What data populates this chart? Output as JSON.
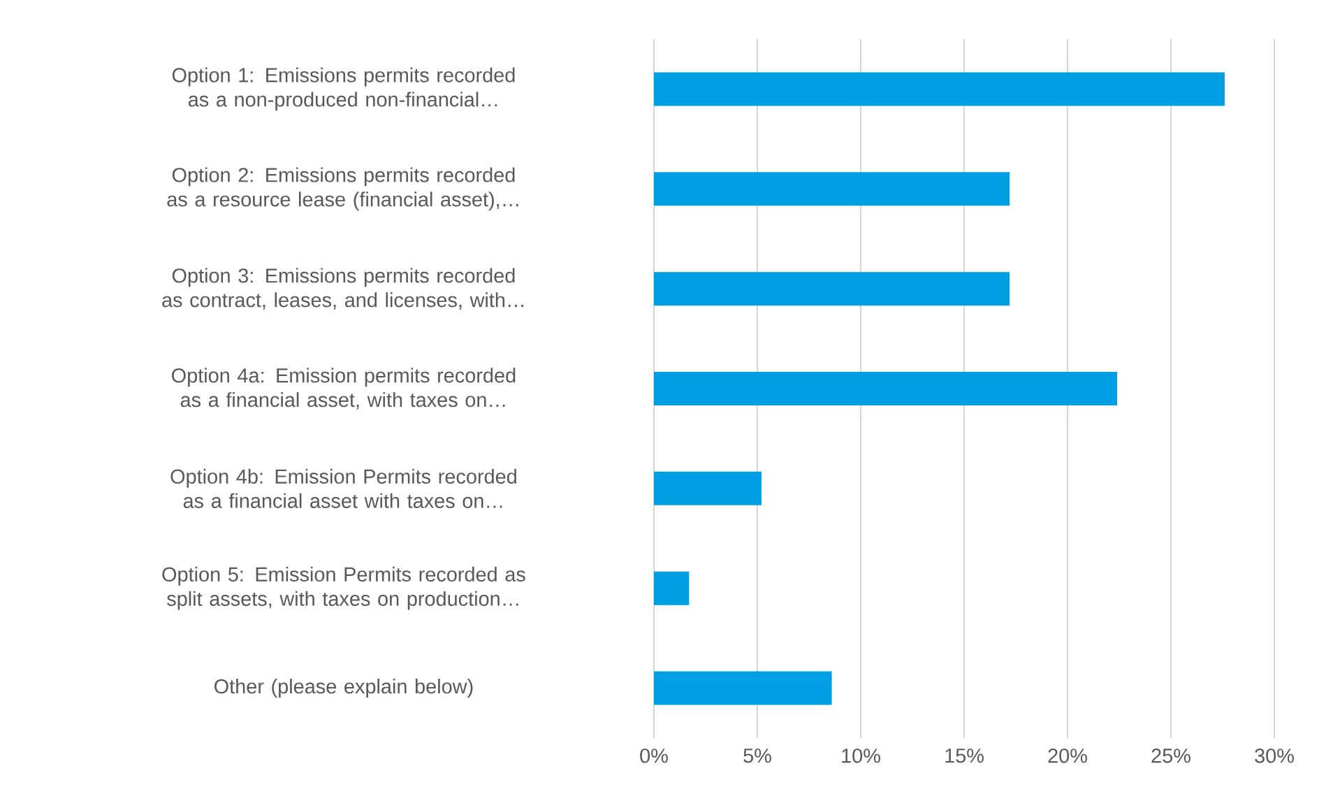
{
  "chart_data": {
    "type": "bar",
    "orientation": "horizontal",
    "categories": [
      "Option 1: Emissions permits recorded as a non-produced non-financial…",
      "Option 2: Emissions permits recorded as a resource lease (financial asset),…",
      "Option 3: Emissions permits recorded as contract, leases, and licenses, with…",
      "Option 4a: Emission permits recorded as a financial asset, with taxes on…",
      "Option 4b: Emission Permits recorded as a financial asset with taxes on…",
      "Option 5: Emission Permits recorded as split assets, with taxes on production…",
      "Other (please explain below)"
    ],
    "values": [
      27.6,
      17.2,
      17.2,
      22.4,
      5.2,
      1.7,
      8.6
    ],
    "color": "#009fe3",
    "xlim": [
      0,
      30
    ],
    "xticks": [
      {
        "value": 0,
        "label": "0%"
      },
      {
        "value": 5,
        "label": "5%"
      },
      {
        "value": 10,
        "label": "10%"
      },
      {
        "value": 15,
        "label": "15%"
      },
      {
        "value": 20,
        "label": "20%"
      },
      {
        "value": 25,
        "label": "25%"
      },
      {
        "value": 30,
        "label": "30%"
      }
    ],
    "grid": "x"
  }
}
